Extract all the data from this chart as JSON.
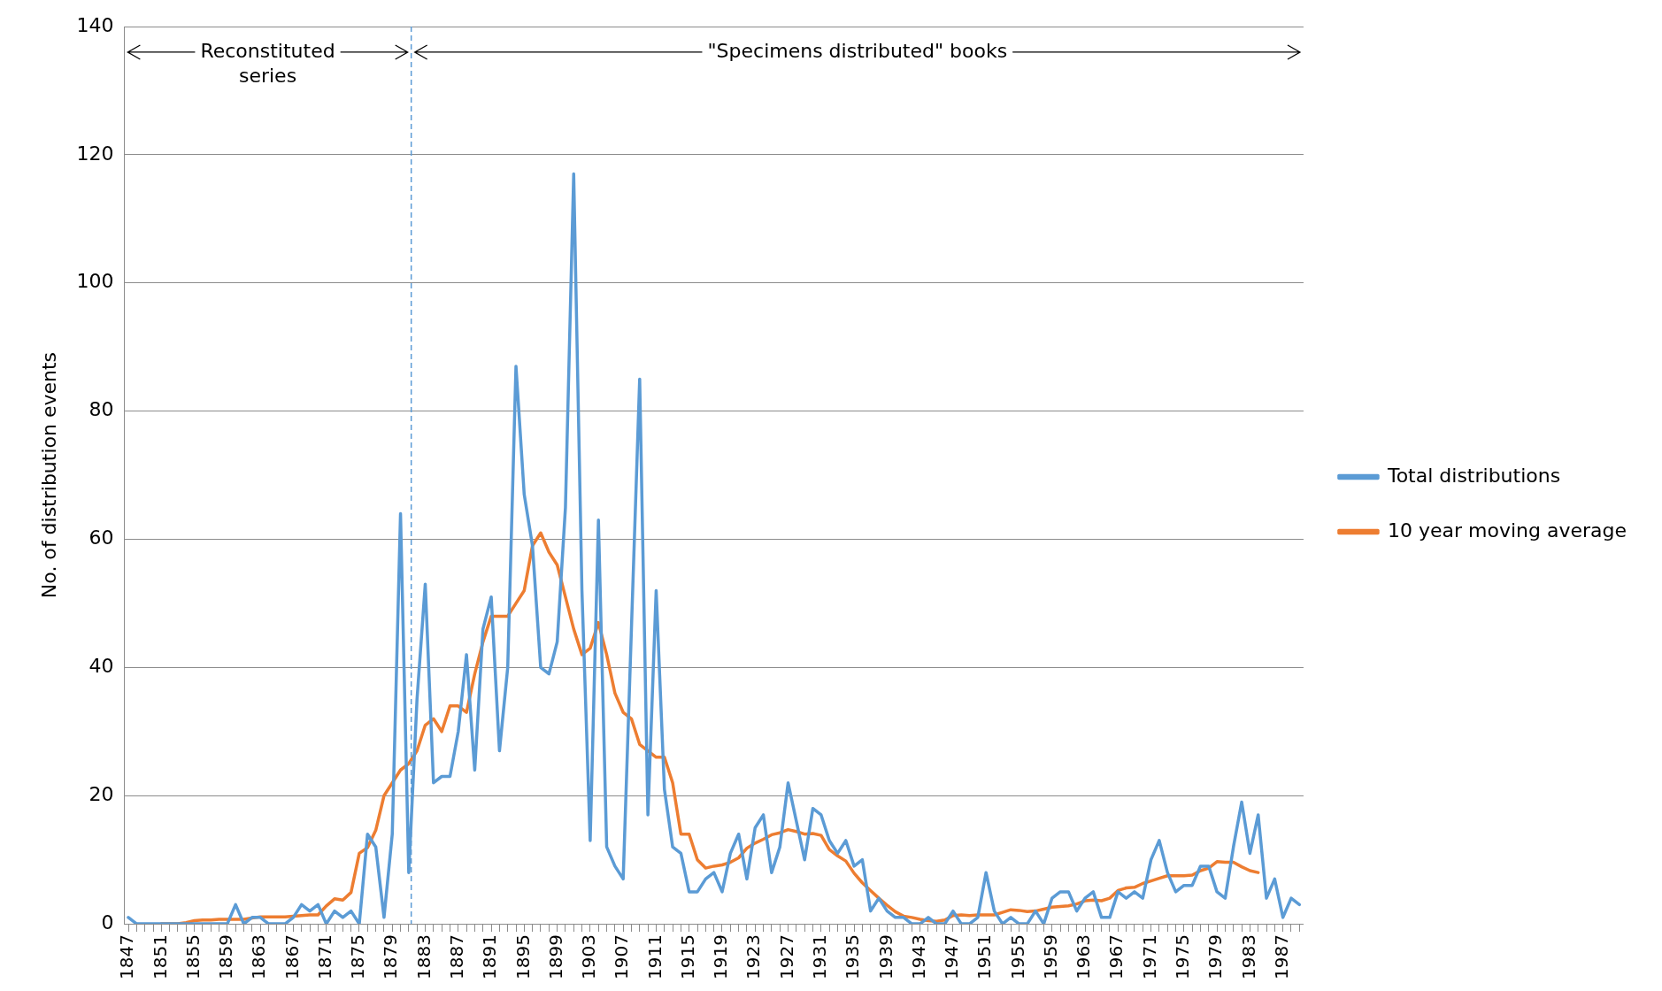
{
  "chart_data": {
    "type": "line",
    "ylabel": "No. of distribution events",
    "x": [
      1847,
      1848,
      1849,
      1850,
      1851,
      1852,
      1853,
      1854,
      1855,
      1856,
      1857,
      1858,
      1859,
      1860,
      1861,
      1862,
      1863,
      1864,
      1865,
      1866,
      1867,
      1868,
      1869,
      1870,
      1871,
      1872,
      1873,
      1874,
      1875,
      1876,
      1877,
      1878,
      1879,
      1880,
      1881,
      1882,
      1883,
      1884,
      1885,
      1886,
      1887,
      1888,
      1889,
      1890,
      1891,
      1892,
      1893,
      1894,
      1895,
      1896,
      1897,
      1898,
      1899,
      1900,
      1901,
      1902,
      1903,
      1904,
      1905,
      1906,
      1907,
      1908,
      1909,
      1910,
      1911,
      1912,
      1913,
      1914,
      1915,
      1916,
      1917,
      1918,
      1919,
      1920,
      1921,
      1922,
      1923,
      1924,
      1925,
      1926,
      1927,
      1928,
      1929,
      1930,
      1931,
      1932,
      1933,
      1934,
      1935,
      1936,
      1937,
      1938,
      1939,
      1940,
      1941,
      1942,
      1943,
      1944,
      1945,
      1946,
      1947,
      1948,
      1949,
      1950,
      1951,
      1952,
      1953,
      1954,
      1955,
      1956,
      1957,
      1958,
      1959,
      1960,
      1961,
      1962,
      1963,
      1964,
      1965,
      1966,
      1967,
      1968,
      1969,
      1970,
      1971,
      1972,
      1973,
      1974,
      1975,
      1976,
      1977,
      1978,
      1979,
      1980,
      1981,
      1982,
      1983,
      1984,
      1985,
      1986,
      1987,
      1988,
      1989
    ],
    "series": [
      {
        "name": "Total distributions",
        "color": "#5b9bd5",
        "values": [
          1,
          0,
          0,
          0,
          0,
          0,
          0,
          0,
          0,
          0,
          0,
          0,
          0,
          3,
          0,
          1,
          1,
          0,
          0,
          0,
          1,
          3,
          2,
          3,
          0,
          2,
          1,
          2,
          0,
          14,
          12,
          1,
          14,
          64,
          8,
          35,
          53,
          22,
          23,
          23,
          30,
          42,
          24,
          46,
          51,
          27,
          40,
          87,
          67,
          59,
          40,
          39,
          44,
          65,
          117,
          52,
          13,
          63,
          12,
          9,
          7,
          46,
          85,
          17,
          52,
          21,
          12,
          11,
          5,
          5,
          7,
          8,
          5,
          11,
          14,
          7,
          15,
          17,
          8,
          12,
          22,
          16,
          10,
          18,
          17,
          13,
          11,
          13,
          9,
          10,
          2,
          4,
          2,
          1,
          1,
          0,
          0,
          1,
          0,
          0,
          2,
          0,
          0,
          1,
          8,
          2,
          0,
          1,
          0,
          0,
          2,
          0,
          4,
          5,
          5,
          2,
          4,
          5,
          1,
          1,
          5,
          4,
          5,
          4,
          10,
          13,
          8,
          5,
          6,
          6,
          9,
          9,
          5,
          4,
          12,
          19,
          11,
          17,
          4,
          7,
          1,
          4,
          3
        ]
      },
      {
        "name": "10 year moving average",
        "color": "#ed7d31",
        "values": [
          null,
          null,
          null,
          null,
          0,
          0,
          0,
          0.2,
          0.5,
          0.6,
          0.6,
          0.7,
          0.7,
          0.7,
          0.7,
          0.9,
          1.1,
          1.1,
          1.1,
          1.1,
          1.2,
          1.3,
          1.4,
          1.4,
          2.8,
          3.9,
          3.7,
          4.9,
          11,
          11.9,
          14.6,
          20,
          22,
          24,
          25,
          27,
          31,
          32,
          30,
          34,
          34,
          33,
          39,
          44,
          48,
          48,
          48,
          50,
          52,
          59,
          61,
          58,
          56,
          51,
          46,
          42,
          43,
          47,
          42,
          36,
          33,
          32,
          28,
          27,
          26,
          26,
          22,
          14,
          14,
          10,
          8.7,
          9,
          9.2,
          9.6,
          10.3,
          11.8,
          12.6,
          13.2,
          13.9,
          14.2,
          14.7,
          14.4,
          14,
          14.1,
          13.8,
          11.6,
          10.6,
          9.8,
          7.9,
          6.4,
          5.2,
          4,
          2.9,
          1.9,
          1.2,
          1,
          0.7,
          0.5,
          0.4,
          0.6,
          1.3,
          1.4,
          1.3,
          1.4,
          1.4,
          1.4,
          1.8,
          2.2,
          2.1,
          1.9,
          2,
          2.3,
          2.6,
          2.7,
          2.8,
          3.1,
          3.6,
          3.7,
          3.6,
          4,
          5.2,
          5.6,
          5.7,
          6.3,
          6.7,
          7.1,
          7.5,
          7.5,
          7.5,
          7.6,
          8.3,
          8.7,
          9.7,
          9.6,
          9.6,
          8.9,
          8.3,
          8,
          null,
          null,
          null,
          null,
          null
        ]
      }
    ],
    "xlim": [
      1846.5,
      1989.5
    ],
    "xticks": [
      1847,
      {
        "value": 1848,
        "label": null
      },
      {
        "value": 1849,
        "label": null
      },
      {
        "value": 1850,
        "label": null
      },
      1851,
      {
        "value": 1852,
        "label": null
      },
      {
        "value": 1853,
        "label": null
      },
      {
        "value": 1854,
        "label": null
      },
      1855,
      {
        "value": 1856,
        "label": null
      },
      {
        "value": 1857,
        "label": null
      },
      {
        "value": 1858,
        "label": null
      },
      1859,
      {
        "value": 1860,
        "label": null
      },
      {
        "value": 1861,
        "label": null
      },
      {
        "value": 1862,
        "label": null
      },
      1863,
      {
        "value": 1864,
        "label": null
      },
      {
        "value": 1865,
        "label": null
      },
      {
        "value": 1866,
        "label": null
      },
      1867,
      {
        "value": 1868,
        "label": null
      },
      {
        "value": 1869,
        "label": null
      },
      {
        "value": 1870,
        "label": null
      },
      1871,
      {
        "value": 1872,
        "label": null
      },
      {
        "value": 1873,
        "label": null
      },
      {
        "value": 1874,
        "label": null
      },
      1875,
      {
        "value": 1876,
        "label": null
      },
      {
        "value": 1877,
        "label": null
      },
      {
        "value": 1878,
        "label": null
      },
      1879,
      {
        "value": 1880,
        "label": null
      },
      {
        "value": 1881,
        "label": null
      },
      {
        "value": 1882,
        "label": null
      },
      1883,
      {
        "value": 1884,
        "label": null
      },
      {
        "value": 1885,
        "label": null
      },
      {
        "value": 1886,
        "label": null
      },
      1887,
      {
        "value": 1888,
        "label": null
      },
      {
        "value": 1889,
        "label": null
      },
      {
        "value": 1890,
        "label": null
      },
      1891,
      {
        "value": 1892,
        "label": null
      },
      {
        "value": 1893,
        "label": null
      },
      {
        "value": 1894,
        "label": null
      },
      1895,
      {
        "value": 1896,
        "label": null
      },
      {
        "value": 1897,
        "label": null
      },
      {
        "value": 1898,
        "label": null
      },
      1899,
      {
        "value": 1900,
        "label": null
      },
      {
        "value": 1901,
        "label": null
      },
      {
        "value": 1902,
        "label": null
      },
      1903,
      {
        "value": 1904,
        "label": null
      },
      {
        "value": 1905,
        "label": null
      },
      {
        "value": 1906,
        "label": null
      },
      1907,
      {
        "value": 1908,
        "label": null
      },
      {
        "value": 1909,
        "label": null
      },
      {
        "value": 1910,
        "label": null
      },
      1911,
      {
        "value": 1912,
        "label": null
      },
      {
        "value": 1913,
        "label": null
      },
      {
        "value": 1914,
        "label": null
      },
      1915,
      {
        "value": 1916,
        "label": null
      },
      {
        "value": 1917,
        "label": null
      },
      {
        "value": 1918,
        "label": null
      },
      1919,
      {
        "value": 1920,
        "label": null
      },
      {
        "value": 1921,
        "label": null
      },
      {
        "value": 1922,
        "label": null
      },
      1923,
      {
        "value": 1924,
        "label": null
      },
      {
        "value": 1925,
        "label": null
      },
      {
        "value": 1926,
        "label": null
      },
      1927,
      {
        "value": 1928,
        "label": null
      },
      {
        "value": 1929,
        "label": null
      },
      {
        "value": 1930,
        "label": null
      },
      1931,
      {
        "value": 1932,
        "label": null
      },
      {
        "value": 1933,
        "label": null
      },
      {
        "value": 1934,
        "label": null
      },
      1935,
      {
        "value": 1936,
        "label": null
      },
      {
        "value": 1937,
        "label": null
      },
      {
        "value": 1938,
        "label": null
      },
      1939,
      {
        "value": 1940,
        "label": null
      },
      {
        "value": 1941,
        "label": null
      },
      {
        "value": 1942,
        "label": null
      },
      1943,
      {
        "value": 1944,
        "label": null
      },
      {
        "value": 1945,
        "label": null
      },
      {
        "value": 1946,
        "label": null
      },
      1947,
      {
        "value": 1948,
        "label": null
      },
      {
        "value": 1949,
        "label": null
      },
      {
        "value": 1950,
        "label": null
      },
      1951,
      {
        "value": 1952,
        "label": null
      },
      {
        "value": 1953,
        "label": null
      },
      {
        "value": 1954,
        "label": null
      },
      1955,
      {
        "value": 1956,
        "label": null
      },
      {
        "value": 1957,
        "label": null
      },
      {
        "value": 1958,
        "label": null
      },
      1959,
      {
        "value": 1960,
        "label": null
      },
      {
        "value": 1961,
        "label": null
      },
      {
        "value": 1962,
        "label": null
      },
      1963,
      {
        "value": 1964,
        "label": null
      },
      {
        "value": 1965,
        "label": null
      },
      {
        "value": 1966,
        "label": null
      },
      1967,
      {
        "value": 1968,
        "label": null
      },
      {
        "value": 1969,
        "label": null
      },
      {
        "value": 1970,
        "label": null
      },
      1971,
      {
        "value": 1972,
        "label": null
      },
      {
        "value": 1973,
        "label": null
      },
      {
        "value": 1974,
        "label": null
      },
      1975,
      {
        "value": 1976,
        "label": null
      },
      {
        "value": 1977,
        "label": null
      },
      {
        "value": 1978,
        "label": null
      },
      1979,
      {
        "value": 1980,
        "label": null
      },
      {
        "value": 1981,
        "label": null
      },
      {
        "value": 1982,
        "label": null
      },
      1983,
      {
        "value": 1984,
        "label": null
      },
      {
        "value": 1985,
        "label": null
      },
      {
        "value": 1986,
        "label": null
      },
      1987,
      {
        "value": 1988,
        "label": null
      },
      {
        "value": 1989,
        "label": null
      }
    ],
    "ylim": [
      0,
      140
    ],
    "yticks": [
      0,
      20,
      40,
      60,
      80,
      100,
      120,
      140
    ],
    "grid": "y",
    "legend": "right",
    "ref_lines": [
      {
        "axis": "x",
        "value": 1881.3,
        "color": "#5b9bd5",
        "line_style": "dashed"
      }
    ],
    "annotations": [
      {
        "text": "Reconstituted series",
        "x": 1881.3,
        "y": 136
      },
      {
        "text": "\"Specimens distributed\" books",
        "x": 1881.3,
        "y": 136
      }
    ]
  }
}
